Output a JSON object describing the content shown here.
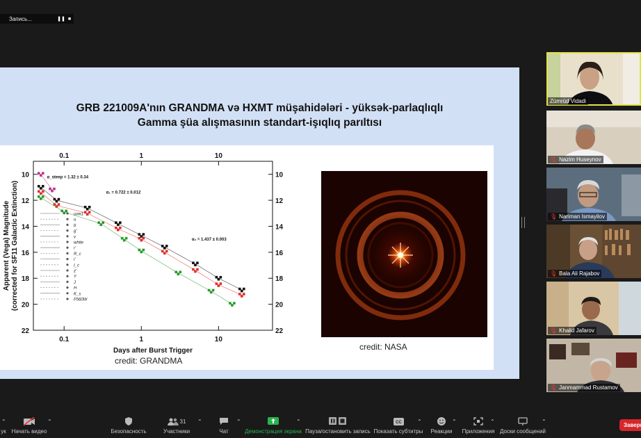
{
  "recording": {
    "label": "Запись..."
  },
  "slide": {
    "title_line1": "GRB 221009A'nın GRANDMA və HXMT müşahidələri - yüksək-parlaqlıqlı",
    "title_line2": "Gamma şüa alışmasının standart-işıqlıq parıltısı",
    "credit_left": "credit: GRANDMA",
    "credit_right": "credit: NASA"
  },
  "chart_data": {
    "type": "scatter",
    "xlabel": "Days after Burst Trigger",
    "ylabel": "Apparent (Vega) Magnitude",
    "ylabel2": "(corrected for SF11 Galactic Extinction)",
    "x_scale": "log",
    "xlim": [
      0.04,
      50
    ],
    "ylim": [
      22,
      9
    ],
    "x_ticks": [
      "0.1",
      "1",
      "10"
    ],
    "y_ticks": [
      "10",
      "12",
      "14",
      "16",
      "18",
      "20",
      "22"
    ],
    "annotations": [
      "α_steep = 1.32 ± 0.34",
      "α₁ = 0.722 ± 0.012",
      "α₂ = 1.437 ± 0.003"
    ],
    "legend": [
      "uvw1",
      "u",
      "b",
      "g'",
      "v",
      "white",
      "r'",
      "R_c",
      "i'",
      "I_c",
      "z'",
      "Y",
      "J",
      "H",
      "K_s",
      "F560W"
    ],
    "series": [
      {
        "name": "r'",
        "color": "#e0302a",
        "x": [
          0.05,
          0.08,
          0.2,
          0.5,
          1,
          2,
          5,
          10,
          20
        ],
        "y": [
          11.4,
          12.4,
          13.0,
          14.2,
          15.0,
          16.0,
          17.4,
          18.5,
          19.3
        ]
      },
      {
        "name": "i'",
        "color": "#111111",
        "x": [
          0.05,
          0.08,
          0.2,
          0.5,
          1,
          2,
          5,
          10,
          20
        ],
        "y": [
          11.0,
          12.0,
          12.6,
          13.8,
          14.7,
          15.6,
          16.9,
          18.0,
          18.9
        ]
      },
      {
        "name": "g'",
        "color": "#2a9a2a",
        "x": [
          0.05,
          0.1,
          0.3,
          0.6,
          1,
          3,
          8,
          15
        ],
        "y": [
          11.8,
          12.9,
          13.8,
          15.0,
          15.9,
          17.6,
          19.0,
          20.0
        ]
      },
      {
        "name": "uvw1",
        "color": "#c0308a",
        "x": [
          0.05,
          0.07
        ],
        "y": [
          10.0,
          11.2
        ]
      }
    ]
  },
  "participants": [
    {
      "name": "Zümrüd Vidadi"
    },
    {
      "name": "Nazim Huseynov"
    },
    {
      "name": "Nariman Ismayilov"
    },
    {
      "name": "Bala Ali Rajabov"
    },
    {
      "name": "Khalid Jafarov"
    },
    {
      "name": "Janmammad Rustamov"
    }
  ],
  "toolbar": {
    "video": "Начать видео",
    "security": "Безопасность",
    "participants": "Участники",
    "participants_count": "31",
    "chat": "Чат",
    "share": "Демонстрация экрана",
    "record": "Пауза/остановить запись",
    "captions": "Показать субтитры",
    "reactions": "Реакции",
    "apps": "Приложения",
    "whiteboard": "Доски сообщений",
    "end": "Заверш",
    "left_cut": "ук"
  },
  "colors": {
    "share_green": "#2bb24c",
    "end_red": "#d6262b",
    "active_speaker": "#e2e24a"
  }
}
